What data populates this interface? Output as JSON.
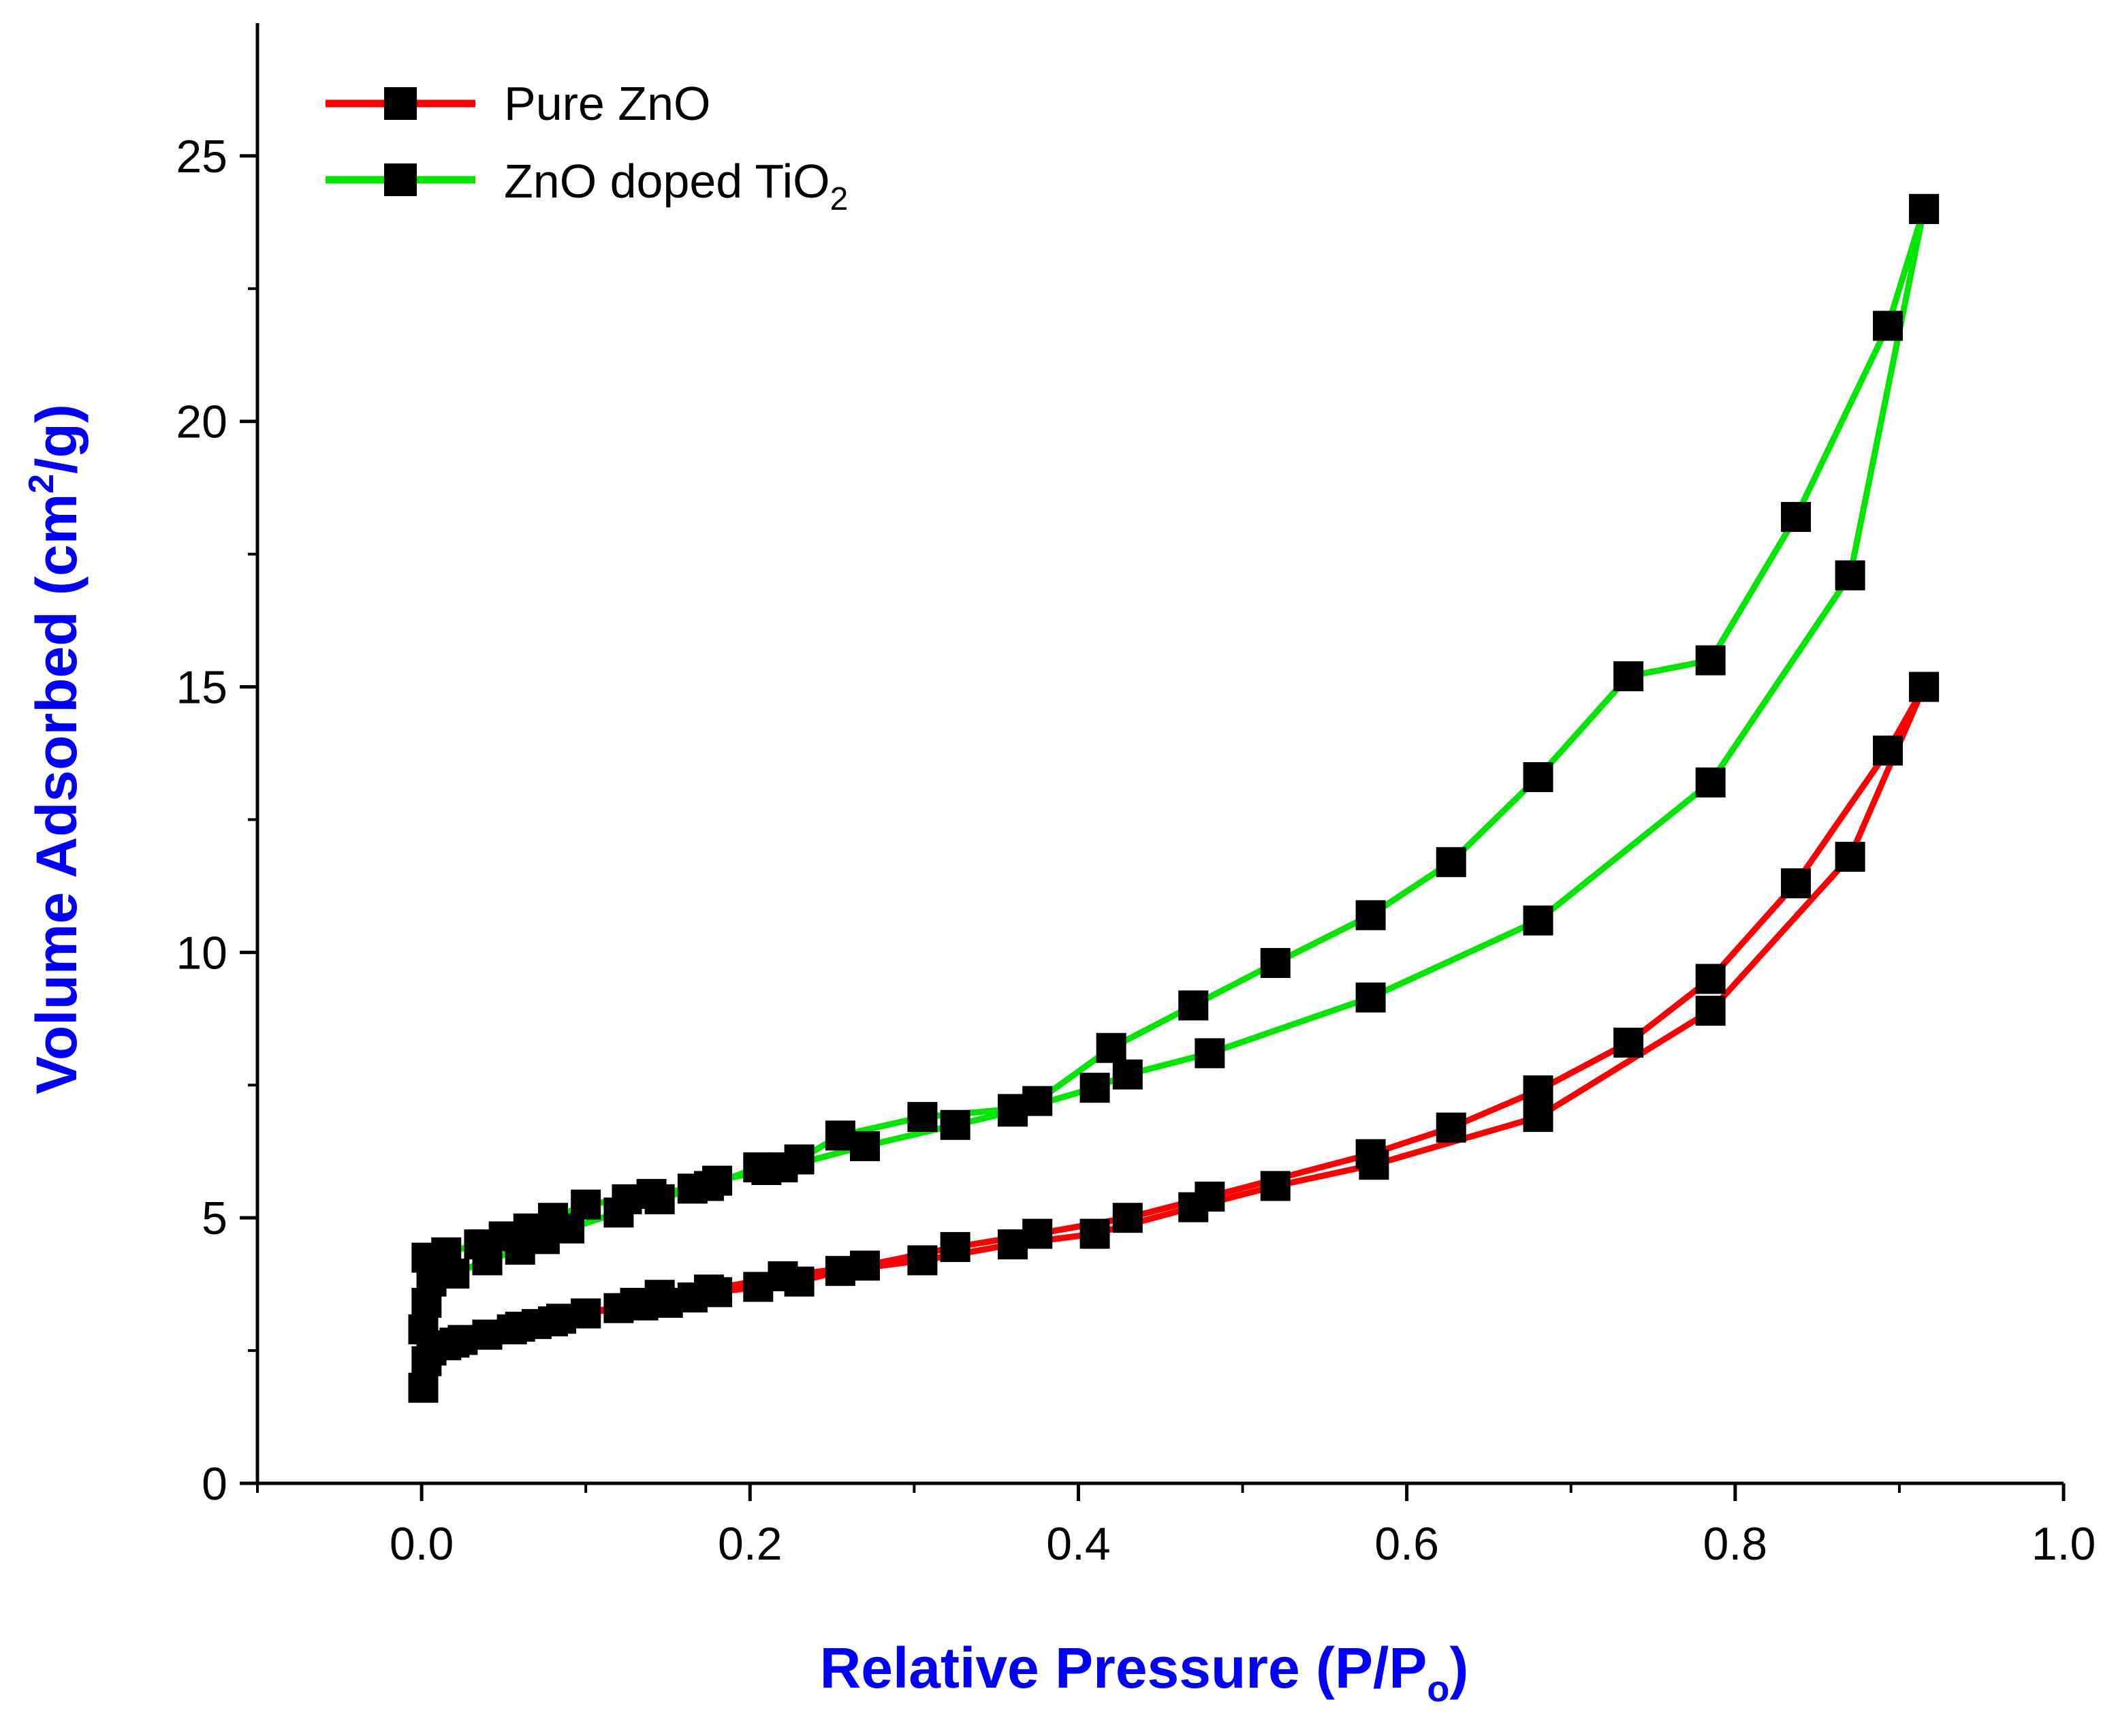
{
  "chart_data": {
    "type": "line",
    "title": "",
    "xlabel": "Relative Pressure (P/P",
    "xlabel_sub": "o",
    "xlabel_end": ")",
    "ylabel": "Volume Adsorbed (cm",
    "ylabel_sup": "2",
    "ylabel_end": "/g)",
    "label_color": "#0000ff",
    "xlim": [
      -0.1,
      1.0
    ],
    "ylim": [
      0,
      27.5
    ],
    "xticks": [
      0.0,
      0.2,
      0.4,
      0.6,
      0.8,
      1.0
    ],
    "xtick_labels": [
      "0.0",
      "0.2",
      "0.4",
      "0.6",
      "0.8",
      "1.0"
    ],
    "yticks": [
      0,
      5,
      10,
      15,
      20,
      25
    ],
    "ytick_labels": [
      "0",
      "5",
      "10",
      "15",
      "20",
      "25"
    ],
    "legend_position": "top-left",
    "marker": "square",
    "marker_color": "#000000",
    "series": [
      {
        "name": "Pure ZnO",
        "legend_label": "Pure ZnO",
        "color": "#ff0000",
        "adsorption": {
          "x": [
            0.001,
            0.003,
            0.006,
            0.015,
            0.025,
            0.04,
            0.055,
            0.07,
            0.085,
            0.1,
            0.12,
            0.135,
            0.15,
            0.165,
            0.18,
            0.205,
            0.23,
            0.255,
            0.305,
            0.36,
            0.41,
            0.47,
            0.52,
            0.58,
            0.68,
            0.785,
            0.87,
            0.915
          ],
          "y": [
            1.8,
            2.3,
            2.5,
            2.6,
            2.7,
            2.8,
            2.9,
            3.0,
            3.1,
            3.2,
            3.3,
            3.35,
            3.4,
            3.5,
            3.6,
            3.7,
            3.8,
            4.0,
            4.2,
            4.5,
            4.7,
            5.2,
            5.6,
            6.0,
            6.9,
            8.9,
            11.8,
            15.0
          ]
        },
        "desorption": {
          "x": [
            0.915,
            0.893,
            0.837,
            0.785,
            0.735,
            0.68,
            0.627,
            0.578,
            0.48,
            0.43,
            0.375,
            0.325,
            0.27,
            0.22,
            0.175,
            0.145,
            0.13,
            0.1,
            0.08,
            0.06,
            0.04,
            0.02
          ],
          "y": [
            15.0,
            13.8,
            11.3,
            9.5,
            8.3,
            7.4,
            6.7,
            6.2,
            5.4,
            5.0,
            4.7,
            4.45,
            4.1,
            3.9,
            3.65,
            3.55,
            3.4,
            3.2,
            3.05,
            2.95,
            2.8,
            2.65
          ]
        }
      },
      {
        "name": "ZnO doped TiO2",
        "legend_label": "ZnO doped TiO",
        "legend_label_sub": "2",
        "color": "#00e600",
        "adsorption": {
          "x": [
            0.001,
            0.003,
            0.006,
            0.02,
            0.04,
            0.06,
            0.075,
            0.09,
            0.12,
            0.145,
            0.165,
            0.18,
            0.21,
            0.22,
            0.27,
            0.325,
            0.36,
            0.41,
            0.43,
            0.48,
            0.578,
            0.68,
            0.785,
            0.87,
            0.915
          ],
          "y": [
            2.9,
            3.4,
            3.8,
            3.95,
            4.2,
            4.4,
            4.6,
            4.8,
            5.1,
            5.35,
            5.55,
            5.7,
            5.9,
            5.95,
            6.35,
            6.75,
            7.0,
            7.45,
            7.7,
            8.1,
            9.15,
            10.6,
            13.2,
            17.1,
            24.0
          ]
        },
        "desorption": {
          "x": [
            0.915,
            0.893,
            0.837,
            0.785,
            0.735,
            0.68,
            0.627,
            0.578,
            0.52,
            0.47,
            0.42,
            0.375,
            0.36,
            0.305,
            0.255,
            0.23,
            0.205,
            0.175,
            0.14,
            0.125,
            0.1,
            0.08,
            0.065,
            0.05,
            0.035,
            0.015,
            0.003
          ],
          "y": [
            24.0,
            21.8,
            18.2,
            15.5,
            15.2,
            13.3,
            11.7,
            10.7,
            9.8,
            9.0,
            8.2,
            7.2,
            7.05,
            6.9,
            6.55,
            6.1,
            5.95,
            5.6,
            5.45,
            5.35,
            5.25,
            5.0,
            4.8,
            4.65,
            4.5,
            4.35,
            4.25
          ]
        }
      }
    ]
  }
}
